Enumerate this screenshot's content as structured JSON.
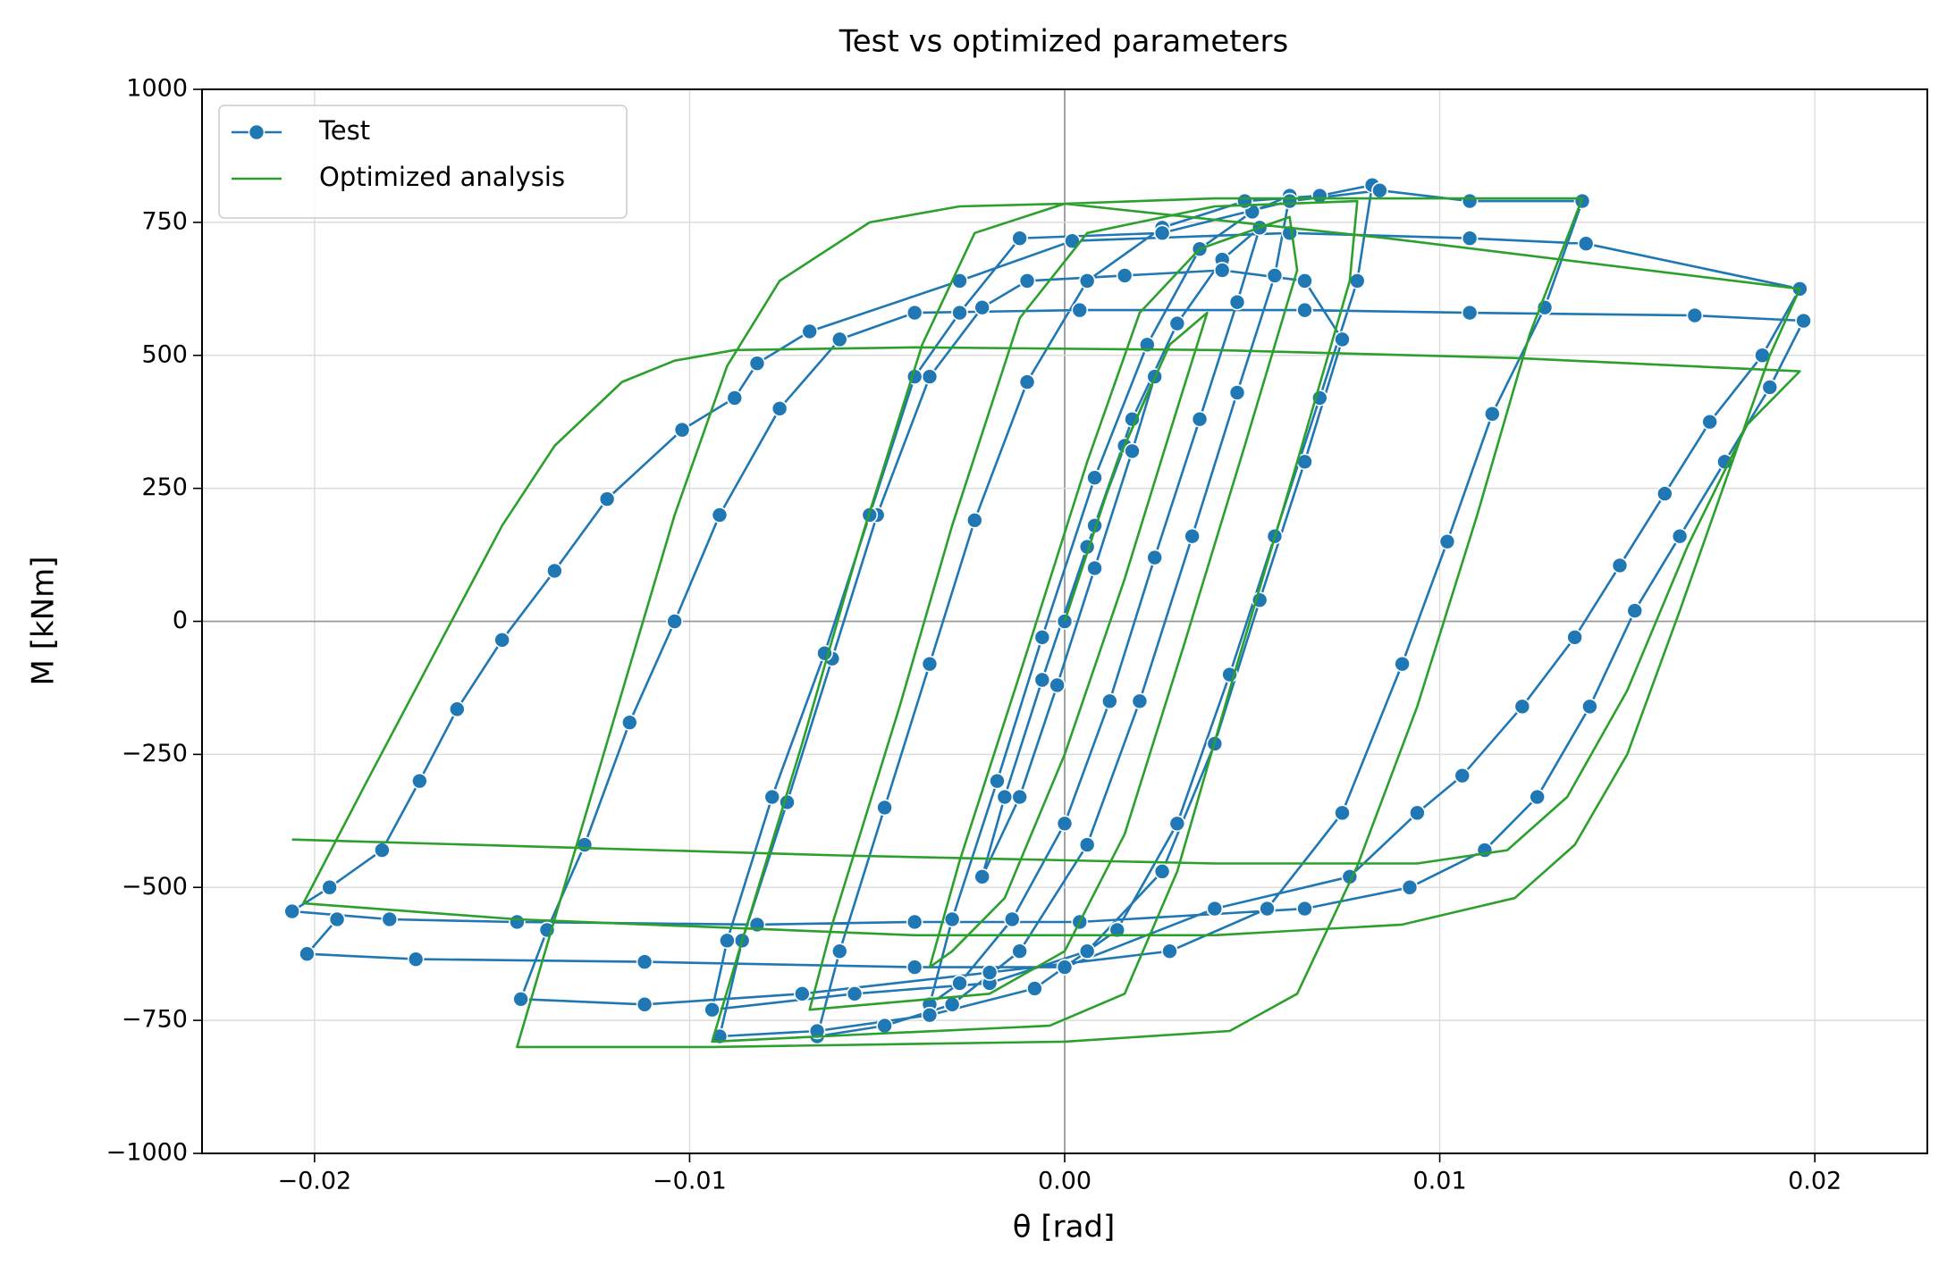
{
  "chart_data": {
    "type": "line",
    "title": "Test vs optimized parameters",
    "xlabel": "θ [rad]",
    "ylabel": "M [kNm]",
    "xlim": [
      -0.023,
      0.023
    ],
    "ylim": [
      -1000,
      1000
    ],
    "xticks": [
      {
        "value": -0.02,
        "label": "−0.02"
      },
      {
        "value": -0.01,
        "label": "−0.01"
      },
      {
        "value": 0,
        "label": "0.00"
      },
      0.01,
      0.02
    ],
    "yticks": [
      {
        "value": -1000,
        "label": "−1000"
      },
      {
        "value": -750,
        "label": "−750"
      },
      {
        "value": -500,
        "label": "−500"
      },
      {
        "value": -250,
        "label": "−250"
      },
      0,
      250,
      500,
      750,
      1000
    ],
    "grid": true,
    "legend": "upper left",
    "series": [
      {
        "name": "Test",
        "color": "#1f77b4",
        "marker": "circle",
        "x": [
          0,
          0.0008,
          0.0016,
          0.0024,
          0.0018,
          0.0008,
          -0.0002,
          -0.0012,
          -0.0022,
          -0.0016,
          -0.0006,
          0.0006,
          0.0018,
          0.003,
          0.0042,
          0.0052,
          0.0046,
          0.0036,
          0.0024,
          0.0012,
          0,
          -0.0014,
          -0.0028,
          -0.0036,
          -0.003,
          -0.0018,
          -0.0006,
          0.0008,
          0.0022,
          0.0036,
          0.005,
          0.006,
          0.0056,
          0.0046,
          0.0034,
          0.002,
          0.0006,
          -0.0012,
          -0.003,
          -0.0048,
          -0.0066,
          -0.006,
          -0.0048,
          -0.0036,
          -0.0024,
          -0.001,
          0.0006,
          0.0026,
          0.0048,
          0.0068,
          0.0082,
          0.0078,
          0.0068,
          0.0056,
          0.0044,
          0.003,
          0.0014,
          -0.0008,
          -0.0036,
          -0.0066,
          -0.0092,
          -0.0086,
          -0.0074,
          -0.0062,
          -0.005,
          -0.0036,
          -0.0022,
          -0.001,
          0.0016,
          0.0042,
          0.0064,
          0.0074,
          0.0064,
          0.0052,
          0.004,
          0.0026,
          0.0006,
          -0.002,
          -0.0056,
          -0.0094,
          -0.009,
          -0.0078,
          -0.0064,
          -0.0052,
          -0.004,
          -0.0028,
          -0.0012,
          0.0026,
          0.006,
          0.0084,
          0.0108,
          0.0138,
          0.0128,
          0.0114,
          0.0102,
          0.009,
          0.0074,
          0.0054,
          0.0028,
          -0.002,
          -0.007,
          -0.0112,
          -0.0145,
          -0.0138,
          -0.0128,
          -0.0116,
          -0.0104,
          -0.0092,
          -0.0076,
          -0.006,
          -0.004,
          0.0004,
          0.0064,
          0.0108,
          0.0168,
          0.0197,
          0.0188,
          0.0176,
          0.0164,
          0.0152,
          0.014,
          0.0126,
          0.0112,
          0.0092,
          0.0064,
          0.0004,
          -0.004,
          -0.0082,
          -0.0146,
          -0.018,
          -0.0206,
          -0.0196,
          -0.0182,
          -0.0172,
          -0.0162,
          -0.015,
          -0.0136,
          -0.0122,
          -0.0102,
          -0.0088,
          -0.0082,
          -0.0068,
          -0.0028,
          0.0002,
          0.006,
          0.0108,
          0.0139,
          0.0196,
          0.0186,
          0.0172,
          0.016,
          0.0148,
          0.0136,
          0.0122,
          0.0106,
          0.0094,
          0.0076,
          0.004,
          0,
          -0.004,
          -0.0112,
          -0.0173,
          -0.0202,
          -0.0194
        ],
        "values": [
          0,
          180,
          330,
          460,
          320,
          100,
          -120,
          -330,
          -480,
          -330,
          -110,
          140,
          380,
          560,
          680,
          740,
          600,
          380,
          120,
          -150,
          -380,
          -560,
          -680,
          -720,
          -560,
          -300,
          -30,
          270,
          520,
          700,
          770,
          800,
          650,
          430,
          160,
          -150,
          -420,
          -620,
          -720,
          -760,
          -780,
          -620,
          -350,
          -80,
          190,
          450,
          640,
          740,
          790,
          800,
          820,
          640,
          420,
          160,
          -100,
          -380,
          -580,
          -690,
          -740,
          -770,
          -780,
          -600,
          -340,
          -70,
          200,
          460,
          590,
          640,
          650,
          660,
          640,
          530,
          300,
          40,
          -230,
          -470,
          -620,
          -680,
          -700,
          -730,
          -600,
          -330,
          -60,
          200,
          460,
          580,
          720,
          730,
          790,
          810,
          790,
          790,
          590,
          390,
          150,
          -80,
          -360,
          -540,
          -620,
          -660,
          -700,
          -720,
          -710,
          -580,
          -420,
          -190,
          0,
          200,
          400,
          530,
          580,
          585,
          585,
          580,
          575,
          565,
          440,
          300,
          160,
          20,
          -160,
          -330,
          -430,
          -500,
          -540,
          -565,
          -565,
          -570,
          -565,
          -560,
          -545,
          -500,
          -430,
          -300,
          -165,
          -35,
          95,
          230,
          360,
          420,
          485,
          545,
          640,
          715,
          730,
          720,
          710,
          625,
          500,
          375,
          240,
          105,
          -30,
          -160,
          -290,
          -360,
          -480,
          -540,
          -650,
          -650,
          -640,
          -635,
          -625,
          -560
        ]
      },
      {
        "name": "Optimized analysis",
        "color": "#2ca02c",
        "marker": "none",
        "x": [
          0,
          0.0014,
          0.0028,
          0.0038,
          0.003,
          0.0016,
          0,
          -0.0016,
          -0.003,
          -0.0036,
          -0.0028,
          -0.0012,
          0.0006,
          0.002,
          0.0036,
          0.006,
          0.0062,
          0.0048,
          0.0032,
          0.0016,
          0,
          -0.002,
          -0.0068,
          -0.0062,
          -0.0044,
          -0.003,
          -0.0012,
          0.0006,
          0.004,
          0.0078,
          0.0076,
          0.0062,
          0.0046,
          0.003,
          0.0016,
          -0.0004,
          -0.005,
          -0.0094,
          -0.0086,
          -0.007,
          -0.0054,
          -0.0038,
          -0.0024,
          0,
          0.004,
          0.0138,
          0.0124,
          0.011,
          0.0094,
          0.0078,
          0.0062,
          0.0044,
          0,
          -0.0094,
          -0.0146,
          -0.0136,
          -0.012,
          -0.0104,
          -0.009,
          -0.0076,
          -0.0052,
          -0.0028,
          0,
          0.0086,
          0.0196,
          0.0188,
          0.0176,
          0.0164,
          0.015,
          0.0136,
          0.012,
          0.009,
          0.004,
          -0.004,
          -0.0146,
          -0.0203,
          -0.0186,
          -0.0168,
          -0.015,
          -0.0136,
          -0.0118,
          -0.0104,
          -0.0088,
          -0.004,
          0.004,
          0.012,
          0.0196,
          0.0182,
          0.0166,
          0.015,
          0.0134,
          0.0118,
          0.0094,
          0.004,
          -0.006,
          -0.0206
        ],
        "values": [
          0,
          300,
          520,
          580,
          400,
          80,
          -250,
          -520,
          -620,
          -650,
          -450,
          -100,
          300,
          580,
          700,
          760,
          660,
          330,
          -40,
          -400,
          -620,
          -700,
          -730,
          -570,
          -160,
          180,
          570,
          730,
          780,
          790,
          640,
          300,
          -80,
          -470,
          -700,
          -760,
          -775,
          -790,
          -600,
          -230,
          160,
          520,
          730,
          785,
          795,
          795,
          540,
          200,
          -160,
          -460,
          -700,
          -770,
          -790,
          -800,
          -800,
          -560,
          -180,
          200,
          480,
          640,
          750,
          780,
          785,
          720,
          625,
          500,
          260,
          20,
          -250,
          -420,
          -520,
          -570,
          -590,
          -590,
          -560,
          -530,
          -300,
          -60,
          180,
          330,
          450,
          490,
          510,
          515,
          510,
          495,
          470,
          370,
          140,
          -130,
          -330,
          -430,
          -455,
          -455,
          -440,
          -410
        ]
      }
    ]
  }
}
